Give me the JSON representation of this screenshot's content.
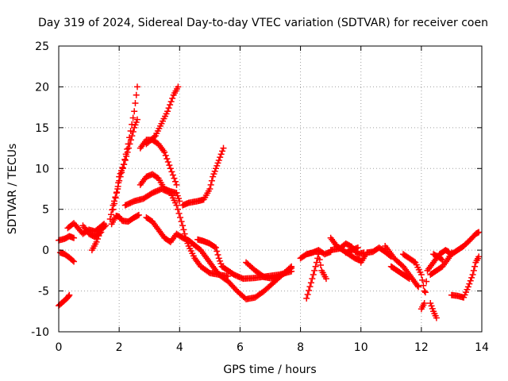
{
  "chart_data": {
    "type": "scatter",
    "title": "Day 319 of 2024, Sidereal Day-to-day VTEC variation (SDTVAR) for receiver coen",
    "xlabel": "GPS time / hours",
    "ylabel": "SDTVAR / TECUs",
    "xlim": [
      0,
      14
    ],
    "ylim": [
      -10,
      25
    ],
    "xticks": [
      0,
      2,
      4,
      6,
      8,
      10,
      12,
      14
    ],
    "yticks": [
      -10,
      -5,
      0,
      5,
      10,
      15,
      20,
      25
    ],
    "grid": true,
    "marker": "+",
    "series": [
      {
        "name": "s1",
        "color": "#ff0000",
        "points": [
          [
            0.0,
            1.2
          ],
          [
            0.2,
            1.4
          ],
          [
            0.35,
            1.7
          ],
          [
            0.5,
            1.5
          ]
        ]
      },
      {
        "name": "s2",
        "color": "#ff0000",
        "points": [
          [
            0.0,
            -6.8
          ],
          [
            0.15,
            -6.3
          ],
          [
            0.3,
            -5.8
          ],
          [
            0.35,
            -5.5
          ]
        ]
      },
      {
        "name": "s3",
        "color": "#ff0000",
        "points": [
          [
            0.05,
            -0.3
          ],
          [
            0.2,
            -0.5
          ],
          [
            0.35,
            -0.9
          ],
          [
            0.5,
            -1.4
          ]
        ]
      },
      {
        "name": "s4",
        "color": "#ff0000",
        "points": [
          [
            0.3,
            2.7
          ],
          [
            0.5,
            3.3
          ],
          [
            0.8,
            2.0
          ],
          [
            1.0,
            2.5
          ],
          [
            1.2,
            2.3
          ],
          [
            1.4,
            2.9
          ],
          [
            1.5,
            3.2
          ]
        ]
      },
      {
        "name": "s5",
        "color": "#ff0000",
        "points": [
          [
            0.8,
            3.0
          ],
          [
            1.0,
            2.0
          ],
          [
            1.2,
            1.6
          ],
          [
            1.4,
            2.2
          ]
        ]
      },
      {
        "name": "s6",
        "color": "#ff0000",
        "points": [
          [
            1.1,
            0.0
          ],
          [
            1.25,
            1.0
          ],
          [
            1.4,
            2.5
          ],
          [
            1.55,
            3.0
          ]
        ]
      },
      {
        "name": "s7",
        "color": "#ff0000",
        "points": [
          [
            1.75,
            3.2
          ],
          [
            1.9,
            4.2
          ],
          [
            2.0,
            4.1
          ],
          [
            2.1,
            3.6
          ],
          [
            2.3,
            3.5
          ],
          [
            2.5,
            4.0
          ],
          [
            2.65,
            4.3
          ]
        ]
      },
      {
        "name": "s8",
        "color": "#ff0000",
        "points": [
          [
            1.7,
            3.8
          ],
          [
            1.8,
            5.5
          ],
          [
            1.95,
            7.5
          ],
          [
            2.0,
            9.0
          ],
          [
            2.15,
            10.5
          ],
          [
            2.3,
            13.0
          ],
          [
            2.5,
            17.0
          ],
          [
            2.6,
            20.0
          ]
        ]
      },
      {
        "name": "s9",
        "color": "#ff0000",
        "points": [
          [
            1.8,
            5.0
          ],
          [
            2.0,
            8.5
          ],
          [
            2.2,
            11.0
          ],
          [
            2.35,
            13.0
          ],
          [
            2.5,
            15.0
          ],
          [
            2.6,
            16.0
          ]
        ]
      },
      {
        "name": "s10",
        "color": "#ff0000",
        "points": [
          [
            2.7,
            12.5
          ],
          [
            2.9,
            13.5
          ],
          [
            3.1,
            13.5
          ],
          [
            3.3,
            13.0
          ],
          [
            3.5,
            12.0
          ],
          [
            3.7,
            10.0
          ],
          [
            3.9,
            8.0
          ]
        ]
      },
      {
        "name": "s11",
        "color": "#ff0000",
        "points": [
          [
            2.9,
            13.0
          ],
          [
            3.2,
            14.0
          ],
          [
            3.4,
            15.5
          ],
          [
            3.6,
            17.0
          ],
          [
            3.8,
            19.0
          ],
          [
            3.95,
            20.0
          ]
        ]
      },
      {
        "name": "s12",
        "color": "#ff0000",
        "points": [
          [
            2.7,
            8.0
          ],
          [
            2.9,
            9.0
          ],
          [
            3.1,
            9.3
          ],
          [
            3.3,
            8.8
          ],
          [
            3.5,
            7.5
          ],
          [
            3.7,
            7.2
          ],
          [
            3.9,
            7.0
          ],
          [
            4.0,
            6.0
          ]
        ]
      },
      {
        "name": "s13",
        "color": "#ff0000",
        "points": [
          [
            2.2,
            5.5
          ],
          [
            2.5,
            6.0
          ],
          [
            2.8,
            6.3
          ],
          [
            3.1,
            7.0
          ],
          [
            3.4,
            7.5
          ],
          [
            3.7,
            7.0
          ],
          [
            3.9,
            5.5
          ],
          [
            4.1,
            3.0
          ],
          [
            4.2,
            1.5
          ],
          [
            4.3,
            0.5
          ],
          [
            4.5,
            -1.0
          ],
          [
            4.7,
            -2.0
          ],
          [
            5.0,
            -2.8
          ],
          [
            5.3,
            -3.0
          ],
          [
            5.6,
            -3.2
          ]
        ]
      },
      {
        "name": "s14",
        "color": "#ff0000",
        "points": [
          [
            2.9,
            4.0
          ],
          [
            3.1,
            3.5
          ],
          [
            3.3,
            2.5
          ],
          [
            3.5,
            1.5
          ],
          [
            3.7,
            1.0
          ],
          [
            3.9,
            2.0
          ],
          [
            4.1,
            1.5
          ],
          [
            4.3,
            1.2
          ],
          [
            4.5,
            0.6
          ],
          [
            4.7,
            0.0
          ],
          [
            4.9,
            -1.0
          ],
          [
            5.1,
            -2.0
          ],
          [
            5.3,
            -3.0
          ],
          [
            5.6,
            -3.8
          ],
          [
            5.9,
            -5.0
          ],
          [
            6.2,
            -6.0
          ],
          [
            6.5,
            -5.8
          ],
          [
            6.8,
            -5.0
          ],
          [
            7.1,
            -4.0
          ],
          [
            7.4,
            -3.0
          ],
          [
            7.7,
            -2.0
          ]
        ]
      },
      {
        "name": "s15",
        "color": "#ff0000",
        "points": [
          [
            4.1,
            5.5
          ],
          [
            4.3,
            5.8
          ],
          [
            4.6,
            6.0
          ],
          [
            4.8,
            6.2
          ],
          [
            5.0,
            7.5
          ],
          [
            5.1,
            9.0
          ],
          [
            5.2,
            10.0
          ],
          [
            5.3,
            11.0
          ],
          [
            5.45,
            12.5
          ]
        ]
      },
      {
        "name": "s16",
        "color": "#ff0000",
        "points": [
          [
            4.6,
            1.3
          ],
          [
            4.8,
            1.1
          ],
          [
            5.0,
            0.8
          ],
          [
            5.2,
            0.3
          ],
          [
            5.3,
            -1.0
          ],
          [
            5.4,
            -2.0
          ],
          [
            5.6,
            -2.5
          ],
          [
            5.8,
            -3.0
          ],
          [
            6.1,
            -3.5
          ],
          [
            6.5,
            -3.4
          ],
          [
            6.9,
            -3.2
          ],
          [
            7.3,
            -3.0
          ],
          [
            7.7,
            -2.6
          ]
        ]
      },
      {
        "name": "s17",
        "color": "#ff0000",
        "points": [
          [
            6.2,
            -1.5
          ],
          [
            6.5,
            -2.5
          ],
          [
            6.8,
            -3.3
          ],
          [
            7.1,
            -3.5
          ],
          [
            7.4,
            -3.0
          ],
          [
            7.7,
            -2.2
          ]
        ]
      },
      {
        "name": "s18",
        "color": "#ff0000",
        "points": [
          [
            8.0,
            -1.0
          ],
          [
            8.2,
            -0.5
          ],
          [
            8.4,
            -0.3
          ],
          [
            8.6,
            0.0
          ],
          [
            8.8,
            -0.5
          ],
          [
            9.0,
            -0.2
          ]
        ]
      },
      {
        "name": "s19",
        "color": "#ff0000",
        "points": [
          [
            8.2,
            -5.9
          ],
          [
            8.35,
            -4.0
          ],
          [
            8.5,
            -2.0
          ],
          [
            8.6,
            -0.5
          ],
          [
            8.7,
            -2.5
          ],
          [
            8.85,
            -3.5
          ]
        ]
      },
      {
        "name": "s20",
        "color": "#ff0000",
        "points": [
          [
            9.0,
            1.5
          ],
          [
            9.2,
            0.5
          ],
          [
            9.4,
            0.0
          ],
          [
            9.6,
            -0.5
          ],
          [
            9.8,
            -1.0
          ],
          [
            10.0,
            -1.3
          ]
        ]
      },
      {
        "name": "s21",
        "color": "#ff0000",
        "points": [
          [
            9.0,
            0.0
          ],
          [
            9.3,
            0.2
          ],
          [
            9.5,
            0.8
          ],
          [
            9.7,
            0.4
          ],
          [
            9.9,
            -0.5
          ],
          [
            10.1,
            -0.3
          ]
        ]
      },
      {
        "name": "s22",
        "color": "#ff0000",
        "points": [
          [
            10.0,
            -1.5
          ],
          [
            10.2,
            -0.3
          ],
          [
            10.4,
            -0.2
          ],
          [
            10.6,
            0.3
          ],
          [
            10.8,
            -0.2
          ],
          [
            11.0,
            -0.8
          ]
        ]
      },
      {
        "name": "s23",
        "color": "#ff0000",
        "points": [
          [
            10.8,
            0.5
          ],
          [
            11.1,
            -1.0
          ],
          [
            11.4,
            -2.0
          ],
          [
            11.6,
            -3.0
          ],
          [
            11.8,
            -4.0
          ],
          [
            11.9,
            -4.5
          ]
        ]
      },
      {
        "name": "s24",
        "color": "#ff0000",
        "points": [
          [
            11.4,
            -0.5
          ],
          [
            11.6,
            -1.0
          ],
          [
            11.8,
            -1.5
          ],
          [
            12.0,
            -3.0
          ],
          [
            12.1,
            -5.0
          ]
        ]
      },
      {
        "name": "s25",
        "color": "#ff0000",
        "points": [
          [
            12.0,
            -7.2
          ],
          [
            12.1,
            -6.5
          ],
          [
            12.2,
            -2.5
          ],
          [
            12.4,
            -1.5
          ],
          [
            12.6,
            -0.5
          ],
          [
            12.8,
            0.0
          ],
          [
            12.9,
            -0.2
          ]
        ]
      },
      {
        "name": "s26",
        "color": "#ff0000",
        "points": [
          [
            12.3,
            -6.5
          ],
          [
            12.4,
            -7.5
          ],
          [
            12.5,
            -8.3
          ]
        ]
      },
      {
        "name": "s27",
        "color": "#ff0000",
        "points": [
          [
            12.4,
            -0.5
          ],
          [
            12.55,
            -0.8
          ],
          [
            12.7,
            -1.2
          ]
        ]
      },
      {
        "name": "s28",
        "color": "#ff0000",
        "points": [
          [
            12.3,
            -3.0
          ],
          [
            12.5,
            -2.5
          ],
          [
            12.7,
            -2.0
          ],
          [
            12.9,
            -1.0
          ],
          [
            13.0,
            -0.3
          ]
        ]
      },
      {
        "name": "s29",
        "color": "#ff0000",
        "points": [
          [
            13.0,
            -0.5
          ],
          [
            13.2,
            0.0
          ],
          [
            13.4,
            0.5
          ],
          [
            13.6,
            1.2
          ],
          [
            13.8,
            2.0
          ],
          [
            13.9,
            2.2
          ]
        ]
      },
      {
        "name": "s30",
        "color": "#ff0000",
        "points": [
          [
            13.0,
            -5.5
          ],
          [
            13.2,
            -5.6
          ],
          [
            13.4,
            -5.8
          ],
          [
            13.55,
            -4.5
          ],
          [
            13.7,
            -3.0
          ],
          [
            13.8,
            -1.5
          ],
          [
            13.9,
            -0.8
          ]
        ]
      },
      {
        "name": "s31",
        "color": "#ff0000",
        "points": [
          [
            9.5,
            -0.3
          ],
          [
            9.7,
            0.0
          ],
          [
            9.9,
            0.3
          ]
        ]
      },
      {
        "name": "s32",
        "color": "#ff0000",
        "points": [
          [
            11.0,
            -2.0
          ],
          [
            11.2,
            -2.5
          ],
          [
            11.4,
            -3.0
          ],
          [
            11.6,
            -3.5
          ]
        ]
      }
    ]
  }
}
